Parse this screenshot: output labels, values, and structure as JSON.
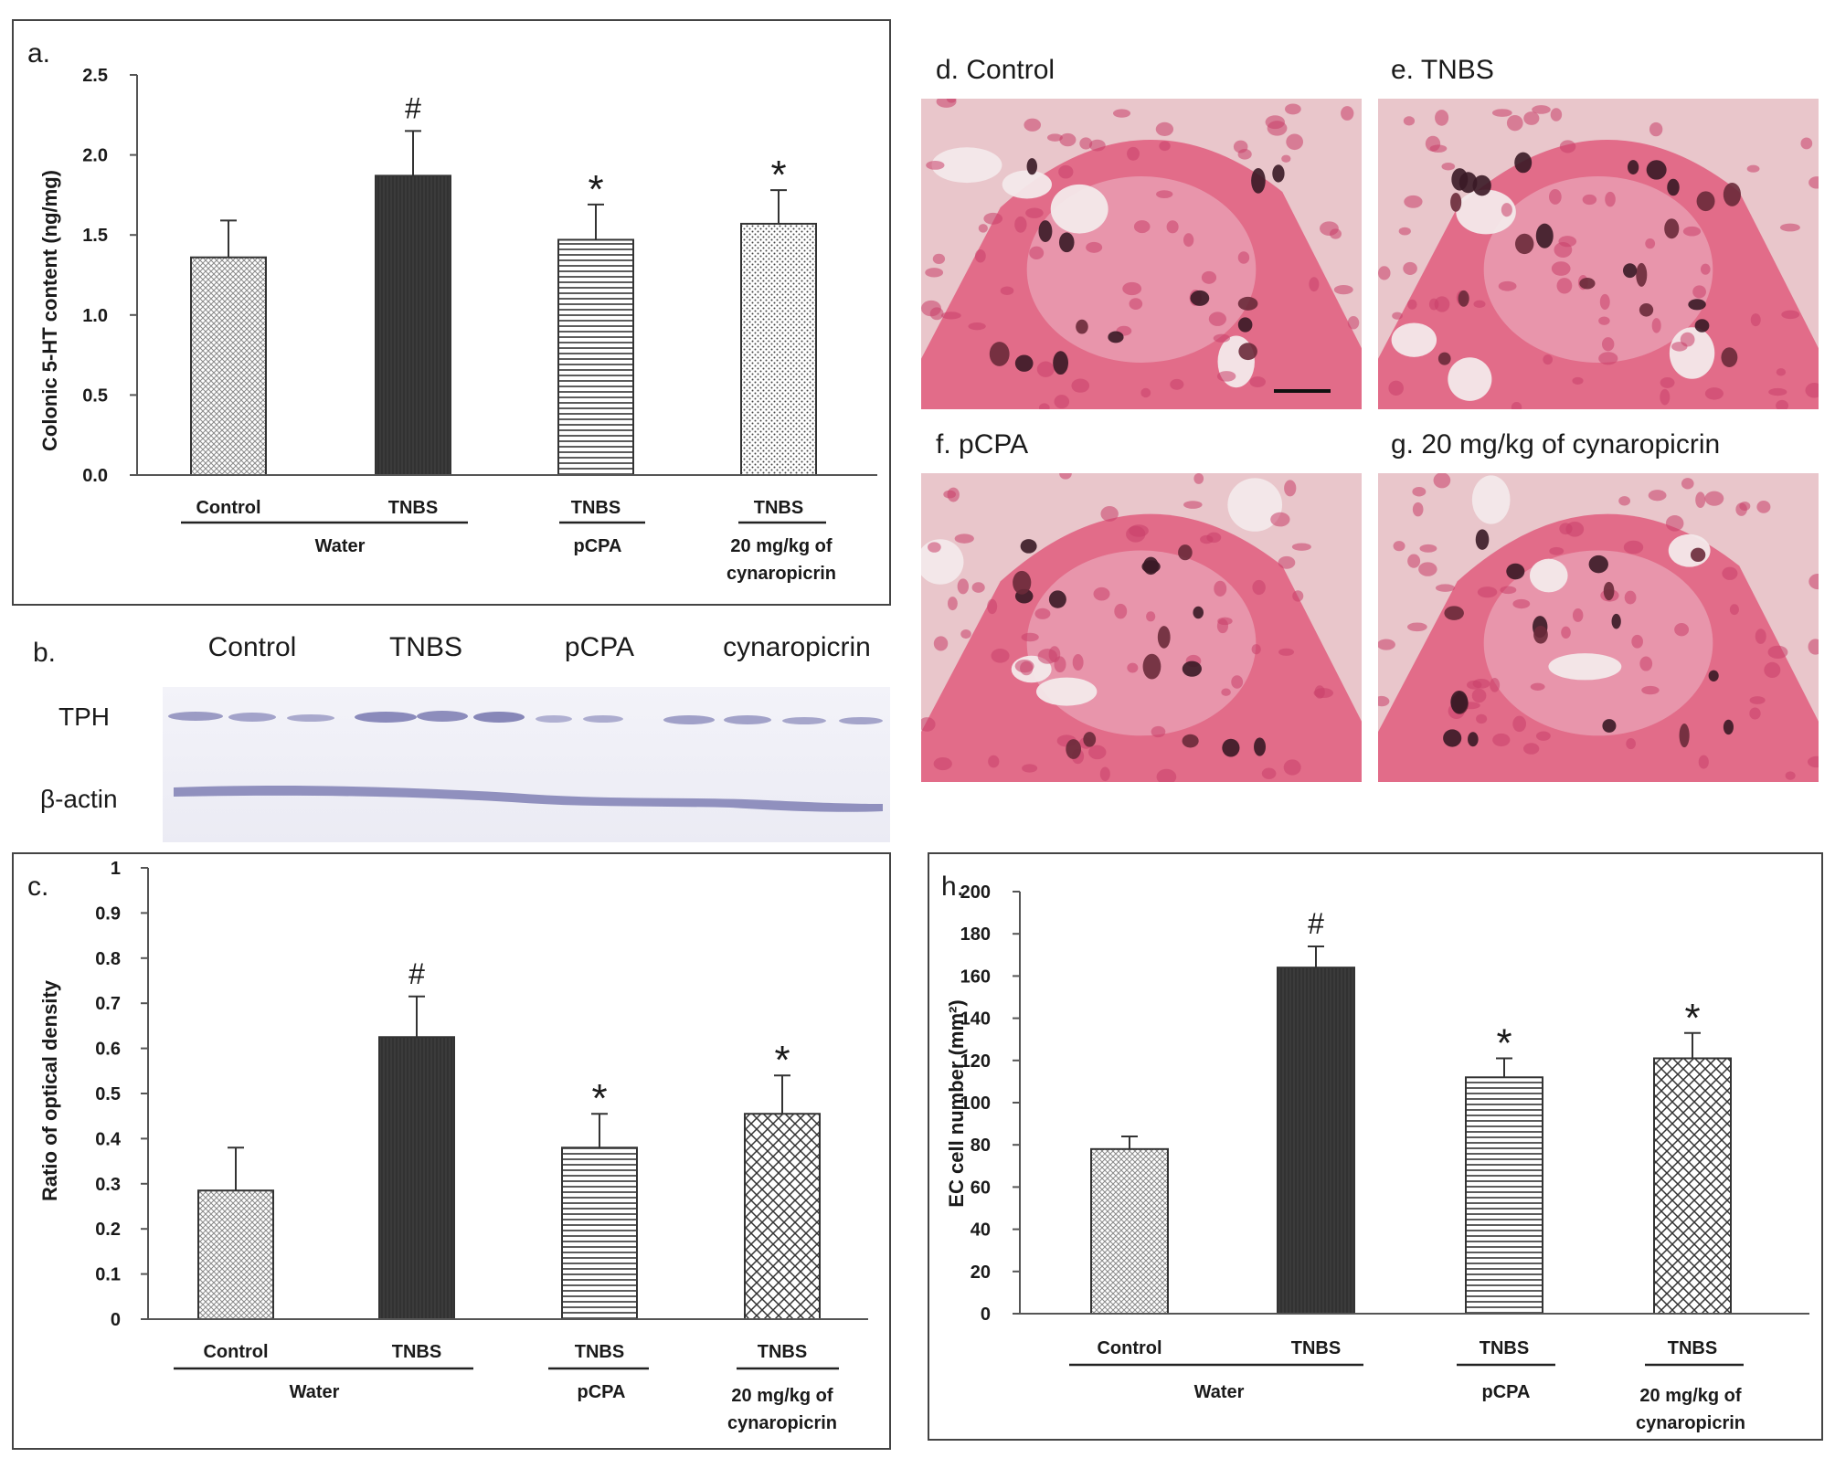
{
  "panels": {
    "a": {
      "letter": "a.",
      "ylabel": "Colonic 5-HT content (ng/mg)",
      "yticks": [
        "0.0",
        "0.5",
        "1.0",
        "1.5",
        "2.0",
        "2.5"
      ],
      "ylim": [
        0,
        2.5
      ],
      "groups": {
        "water": {
          "members": [
            "Control",
            "TNBS"
          ],
          "label": "Water"
        },
        "pcpa": {
          "member": "TNBS",
          "label": "pCPA"
        },
        "cyn": {
          "member": "TNBS",
          "label_line1": "20 mg/kg of",
          "label_line2": "cynaropicrin"
        }
      }
    },
    "b": {
      "letter": "b.",
      "lanes": [
        "Control",
        "TNBS",
        "pCPA",
        "cynaropicrin"
      ],
      "rows": [
        "TPH",
        "β-actin"
      ]
    },
    "c": {
      "letter": "c.",
      "ylabel": "Ratio of optical density",
      "yticks": [
        "0",
        "0.1",
        "0.2",
        "0.3",
        "0.4",
        "0.5",
        "0.6",
        "0.7",
        "0.8",
        "0.9",
        "1"
      ],
      "ylim": [
        0,
        1
      ],
      "groups": {
        "water": {
          "members": [
            "Control",
            "TNBS"
          ],
          "label": "Water"
        },
        "pcpa": {
          "member": "TNBS",
          "label": "pCPA"
        },
        "cyn": {
          "member": "TNBS",
          "label_line1": "20 mg/kg of",
          "label_line2": "cynaropicrin"
        }
      }
    },
    "h": {
      "letter": "h.",
      "ylabel": "EC cell number (mm²)",
      "yticks": [
        "0",
        "20",
        "40",
        "60",
        "80",
        "100",
        "120",
        "140",
        "160",
        "180",
        "200"
      ],
      "ylim": [
        0,
        200
      ],
      "groups": {
        "water": {
          "members": [
            "Control",
            "TNBS"
          ],
          "label": "Water"
        },
        "pcpa": {
          "member": "TNBS",
          "label": "pCPA"
        },
        "cyn": {
          "member": "TNBS",
          "label_line1": "20 mg/kg of",
          "label_line2": "cynaropicrin"
        }
      }
    },
    "micrographs": [
      {
        "key": "d",
        "label": "d. Control"
      },
      {
        "key": "e",
        "label": "e. TNBS"
      },
      {
        "key": "f",
        "label": "f. pCPA"
      },
      {
        "key": "g",
        "label": "g. 20 mg/kg of cynaropicrin"
      }
    ]
  },
  "chart_data": [
    {
      "panel": "a",
      "type": "bar",
      "categories": [
        "Control",
        "TNBS",
        "TNBS",
        "TNBS"
      ],
      "values": [
        1.36,
        1.87,
        1.47,
        1.57
      ],
      "errors": [
        0.23,
        0.28,
        0.22,
        0.21
      ],
      "significance": [
        "",
        "#",
        "*",
        "*"
      ],
      "patterns": [
        "crosshatch-fine",
        "solid-dark",
        "horizontal",
        "dots"
      ],
      "ylabel": "Colonic 5-HT content (ng/mg)",
      "ylim": [
        0,
        2.5
      ],
      "grid": false
    },
    {
      "panel": "c",
      "type": "bar",
      "categories": [
        "Control",
        "TNBS",
        "TNBS",
        "TNBS"
      ],
      "values": [
        0.285,
        0.625,
        0.38,
        0.455
      ],
      "errors": [
        0.095,
        0.09,
        0.075,
        0.085
      ],
      "significance": [
        "",
        "#",
        "*",
        "*"
      ],
      "patterns": [
        "crosshatch-fine",
        "solid-dark",
        "horizontal",
        "diag-cross"
      ],
      "ylabel": "Ratio of optical density",
      "ylim": [
        0,
        1
      ],
      "grid": false
    },
    {
      "panel": "h",
      "type": "bar",
      "categories": [
        "Control",
        "TNBS",
        "TNBS",
        "TNBS"
      ],
      "values": [
        78,
        164,
        112,
        121
      ],
      "errors": [
        6,
        10,
        9,
        12
      ],
      "significance": [
        "",
        "#",
        "*",
        "*"
      ],
      "patterns": [
        "crosshatch-fine",
        "solid-dark",
        "horizontal",
        "diag-cross"
      ],
      "ylabel": "EC cell number (mm²)",
      "ylim": [
        0,
        200
      ],
      "grid": false
    }
  ]
}
